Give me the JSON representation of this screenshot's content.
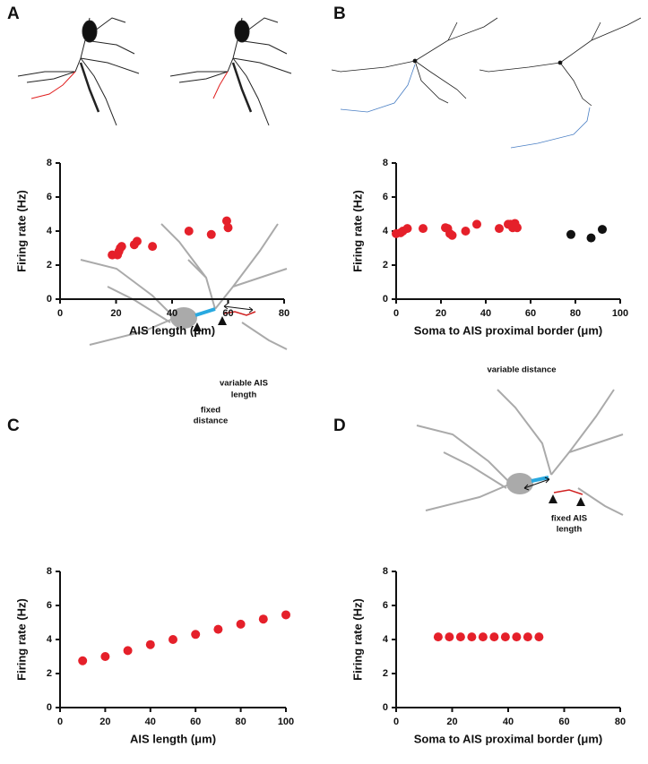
{
  "chart_data": [
    {
      "type": "scatter",
      "panel": "A",
      "x_label": "AIS length (μm)",
      "y_label": "Firing rate (Hz)",
      "xlim": [
        0,
        80
      ],
      "ylim": [
        0,
        8
      ],
      "xticks": [
        0,
        20,
        40,
        60,
        80
      ],
      "yticks": [
        0,
        2,
        4,
        6,
        8
      ],
      "series": [
        {
          "color": "#e5202a",
          "x": [
            18.6,
            20.5,
            21,
            21.5,
            22,
            26.5,
            27.5,
            33,
            46,
            54,
            59.5,
            60
          ],
          "values": [
            2.6,
            2.6,
            2.8,
            3.0,
            3.1,
            3.2,
            3.4,
            3.1,
            4.0,
            3.8,
            4.6,
            4.2
          ]
        }
      ]
    },
    {
      "type": "scatter",
      "panel": "B",
      "x_label": "Soma to AIS proximal border (μm)",
      "y_label": "Firing rate (Hz)",
      "xlim": [
        0,
        100
      ],
      "ylim": [
        0,
        8
      ],
      "xticks": [
        0,
        20,
        40,
        60,
        80,
        100
      ],
      "yticks": [
        0,
        2,
        4,
        6,
        8
      ],
      "series": [
        {
          "color": "#e5202a",
          "x": [
            0,
            2,
            3,
            5,
            12,
            22,
            23,
            24,
            25,
            31,
            36,
            46,
            50,
            51,
            52,
            53,
            54
          ],
          "values": [
            3.85,
            3.9,
            4.0,
            4.15,
            4.15,
            4.2,
            4.15,
            3.85,
            3.75,
            4.0,
            4.4,
            4.15,
            4.4,
            4.4,
            4.2,
            4.45,
            4.2
          ]
        },
        {
          "color": "#111111",
          "x": [
            78,
            87,
            92
          ],
          "values": [
            3.8,
            3.6,
            4.1
          ]
        }
      ]
    },
    {
      "type": "scatter",
      "panel": "C",
      "x_label": "AIS length (μm)",
      "y_label": "Firing rate (Hz)",
      "xlim": [
        0,
        100
      ],
      "ylim": [
        0,
        8
      ],
      "xticks": [
        0,
        20,
        40,
        60,
        80,
        100
      ],
      "yticks": [
        0,
        2,
        4,
        6,
        8
      ],
      "annotations": [
        "variable AIS",
        "length",
        "fixed",
        "distance"
      ],
      "series": [
        {
          "color": "#e5202a",
          "x": [
            10,
            20,
            30,
            40,
            50,
            60,
            70,
            80,
            90,
            100
          ],
          "values": [
            2.75,
            3.0,
            3.35,
            3.7,
            4.0,
            4.3,
            4.6,
            4.9,
            5.2,
            5.45
          ]
        }
      ]
    },
    {
      "type": "scatter",
      "panel": "D",
      "x_label": "Soma to AIS proximal border (μm)",
      "y_label": "Firing rate (Hz)",
      "xlim": [
        0,
        80
      ],
      "ylim": [
        0,
        8
      ],
      "xticks": [
        0,
        20,
        40,
        60,
        80
      ],
      "yticks": [
        0,
        2,
        4,
        6,
        8
      ],
      "annotations": [
        "variable distance",
        "fixed AIS",
        "length"
      ],
      "series": [
        {
          "color": "#e5202a",
          "x": [
            15,
            19,
            23,
            27,
            31,
            35,
            39,
            43,
            47,
            51
          ],
          "values": [
            4.15,
            4.15,
            4.15,
            4.15,
            4.15,
            4.15,
            4.15,
            4.15,
            4.15,
            4.15
          ]
        }
      ]
    }
  ]
}
